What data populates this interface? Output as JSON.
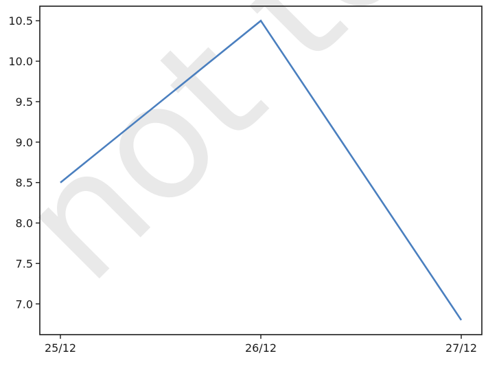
{
  "watermark": "not to be",
  "chart_data": {
    "type": "line",
    "title": "",
    "xlabel": "",
    "ylabel": "",
    "categories": [
      "25/12",
      "26/12",
      "27/12"
    ],
    "series": [
      {
        "values": [
          8.5,
          10.5,
          6.8
        ]
      }
    ],
    "ylim": [
      6.62,
      10.68
    ],
    "yticks": [
      7.0,
      7.5,
      8.0,
      8.5,
      9.0,
      9.5,
      10.0,
      10.5
    ],
    "grid": false,
    "colors": {
      "line": "#4a7fbf",
      "axes": "#1a1a1a"
    }
  }
}
